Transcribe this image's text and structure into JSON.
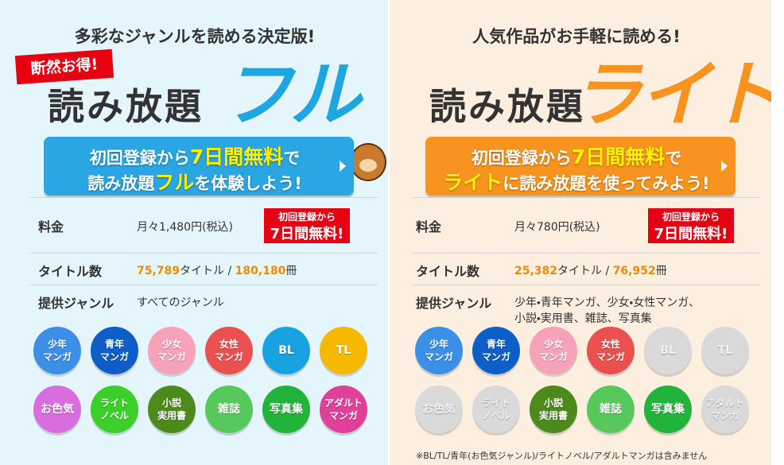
{
  "panels": [
    {
      "tagline": "多彩なジャンルを読める決定版!",
      "badge": "断然お得!",
      "title": "読み放題",
      "title_accent": "フル",
      "accent_color": "#1ea6e1",
      "cta_color": "#2aa6e4",
      "cta": {
        "line1": [
          {
            "text": "初回登録から",
            "color": "#ffffff"
          },
          {
            "text": "7日間",
            "color": "#fff200"
          },
          {
            "text": "無料",
            "color": "#fff200"
          },
          {
            "text": "で",
            "color": "#ffffff"
          }
        ],
        "line2": [
          {
            "text": "読み放題",
            "color": "#ffffff"
          },
          {
            "text": "フル",
            "color": "#fff200"
          },
          {
            "text": "を体験しよう!",
            "color": "#ffffff"
          }
        ]
      },
      "table": {
        "price": {
          "label": "料金",
          "value": "月々1,480円(税込)",
          "badge": [
            "初回登録から",
            "7日間無料!"
          ]
        },
        "titles": {
          "label": "タイトル数",
          "titles": "75,789",
          "titles_unit": "タイトル / ",
          "volumes": "180,180",
          "volumes_unit": "冊"
        },
        "genres": {
          "label": "提供ジャンル",
          "value": [
            "すべてのジャンル"
          ]
        }
      },
      "genre_icons": [
        {
          "label": [
            "少年",
            "マンガ"
          ],
          "color": "#3b8fe6",
          "available": true
        },
        {
          "label": [
            "青年",
            "マンガ"
          ],
          "color": "#0d5ec6",
          "available": true
        },
        {
          "label": [
            "少女",
            "マンガ"
          ],
          "color": "#f6a3ba",
          "available": true
        },
        {
          "label": [
            "女性",
            "マンガ"
          ],
          "color": "#e9504f",
          "available": true
        },
        {
          "label": [
            "BL"
          ],
          "color": "#19a2e2",
          "available": true
        },
        {
          "label": [
            "TL"
          ],
          "color": "#f6b900",
          "available": true
        },
        {
          "label": [
            "お色気"
          ],
          "color": "#d86de0",
          "available": true
        },
        {
          "label": [
            "ライト",
            "ノベル"
          ],
          "color": "#3ccf2a",
          "available": true
        },
        {
          "label": [
            "小説",
            "実用書"
          ],
          "color": "#4b8a1b",
          "available": true
        },
        {
          "label": [
            "雑誌"
          ],
          "color": "#56c85c",
          "available": true
        },
        {
          "label": [
            "写真集"
          ],
          "color": "#22b33b",
          "available": true
        },
        {
          "label": [
            "アダルト",
            "マンガ"
          ],
          "color": "#e0409a",
          "available": true
        }
      ]
    },
    {
      "tagline": "人気作品がお手軽に読める!",
      "title": "読み放題",
      "title_accent": "ライト",
      "accent_color": "#f7931e",
      "cta_color": "#f7931e",
      "cta": {
        "line1": [
          {
            "text": "初回登録から",
            "color": "#ffffff"
          },
          {
            "text": "7日間",
            "color": "#fff200"
          },
          {
            "text": "無料",
            "color": "#fff200"
          },
          {
            "text": "で",
            "color": "#ffffff"
          }
        ],
        "line2": [
          {
            "text": "ライト",
            "color": "#fff200"
          },
          {
            "text": "に読み放題を使ってみよう!",
            "color": "#ffffff"
          }
        ]
      },
      "table": {
        "price": {
          "label": "料金",
          "value": "月々780円(税込)",
          "badge": [
            "初回登録から",
            "7日間無料!"
          ]
        },
        "titles": {
          "label": "タイトル数",
          "titles": "25,382",
          "titles_unit": "タイトル / ",
          "volumes": "76,952",
          "volumes_unit": "冊"
        },
        "genres": {
          "label": "提供ジャンル",
          "value": [
            "少年・青年マンガ、少女・女性マンガ、",
            "小説・実用書、雑誌、写真集"
          ]
        }
      },
      "genre_icons": [
        {
          "label": [
            "少年",
            "マンガ"
          ],
          "color": "#3b8fe6",
          "available": true
        },
        {
          "label": [
            "青年",
            "マンガ"
          ],
          "color": "#0d5ec6",
          "available": true
        },
        {
          "label": [
            "少女",
            "マンガ"
          ],
          "color": "#f6a3ba",
          "available": true
        },
        {
          "label": [
            "女性",
            "マンガ"
          ],
          "color": "#e9504f",
          "available": true
        },
        {
          "label": [
            "BL"
          ],
          "color": "#19a2e2",
          "available": false
        },
        {
          "label": [
            "TL"
          ],
          "color": "#f6b900",
          "available": false
        },
        {
          "label": [
            "お色気"
          ],
          "color": "#d86de0",
          "available": false
        },
        {
          "label": [
            "ライト",
            "ノベル"
          ],
          "color": "#3ccf2a",
          "available": false
        },
        {
          "label": [
            "小説",
            "実用書"
          ],
          "color": "#4b8a1b",
          "available": true
        },
        {
          "label": [
            "雑誌"
          ],
          "color": "#56c85c",
          "available": true
        },
        {
          "label": [
            "写真集"
          ],
          "color": "#22b33b",
          "available": true
        },
        {
          "label": [
            "アダルト",
            "マンガ"
          ],
          "color": "#e0409a",
          "available": false
        }
      ]
    }
  ],
  "footnote": "※BL/TL/青年(お色気ジャンル)/ライトノベル/アダルトマンガは含みません"
}
